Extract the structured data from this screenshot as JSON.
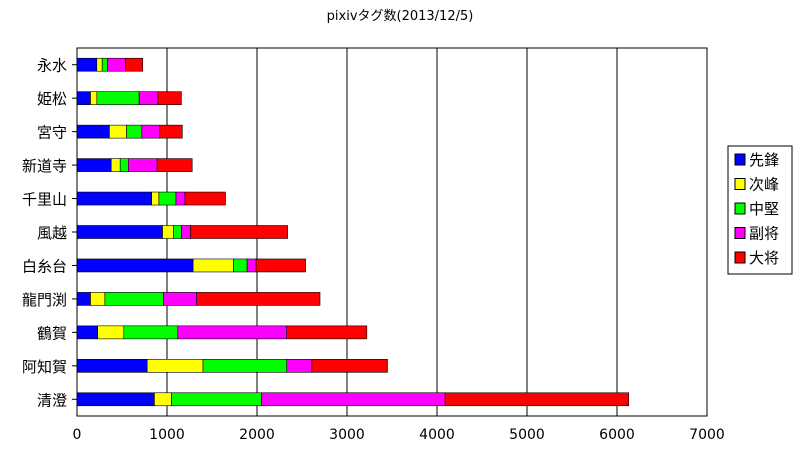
{
  "chart_data": {
    "type": "bar",
    "orientation": "horizontal",
    "stacked": true,
    "title": "pixivタグ数(2013/12/5)",
    "xlim": [
      0,
      7000
    ],
    "xticks": [
      0,
      1000,
      2000,
      3000,
      4000,
      5000,
      6000,
      7000
    ],
    "grid": true,
    "legend_position": "right",
    "categories": [
      "永水",
      "姫松",
      "宮守",
      "新道寺",
      "千里山",
      "風越",
      "白糸台",
      "龍門渕",
      "鶴賀",
      "阿知賀",
      "清澄"
    ],
    "series": [
      {
        "name": "先鋒",
        "color": "#0000ff",
        "values": [
          220,
          150,
          360,
          380,
          830,
          950,
          1290,
          150,
          230,
          780,
          860
        ]
      },
      {
        "name": "次峰",
        "color": "#ffff00",
        "values": [
          60,
          70,
          190,
          100,
          80,
          120,
          450,
          160,
          290,
          620,
          190
        ]
      },
      {
        "name": "中堅",
        "color": "#00ff00",
        "values": [
          60,
          470,
          170,
          90,
          190,
          90,
          150,
          650,
          600,
          930,
          1000
        ]
      },
      {
        "name": "副将",
        "color": "#ff00ff",
        "values": [
          200,
          210,
          200,
          320,
          100,
          100,
          100,
          370,
          1210,
          280,
          2040
        ]
      },
      {
        "name": "大将",
        "color": "#ff0000",
        "values": [
          190,
          260,
          250,
          390,
          450,
          1080,
          550,
          1370,
          890,
          840,
          2040
        ]
      }
    ]
  }
}
